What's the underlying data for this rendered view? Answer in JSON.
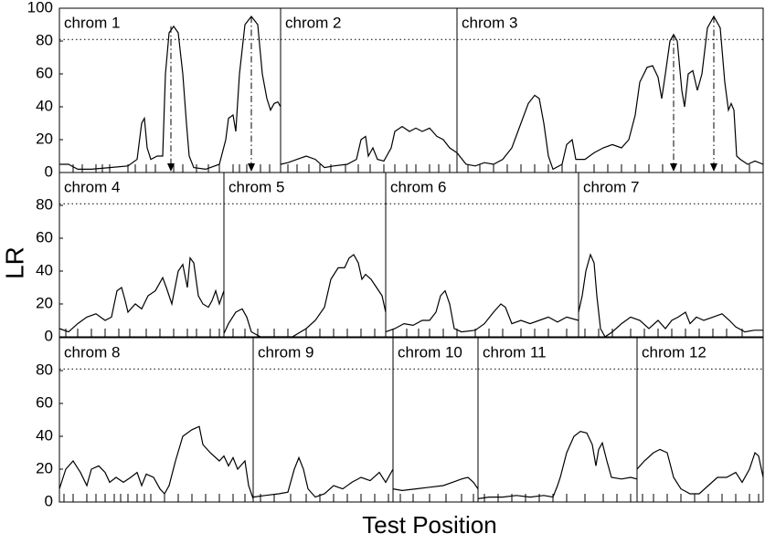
{
  "figure": {
    "ylabel": "LR",
    "xlabel": "Test Position"
  },
  "chart_data": [
    {
      "type": "line",
      "xlim": [
        65,
        835
      ],
      "ylim": [
        0,
        100
      ],
      "yticks": [
        0,
        20,
        40,
        60,
        80,
        100
      ],
      "threshold": 81,
      "color": "#000000",
      "chromosomes": [
        {
          "name": "chrom 1",
          "range": [
            65,
            307
          ],
          "x": [
            65,
            75,
            85,
            100,
            120,
            140,
            150,
            155,
            158,
            161,
            165,
            172,
            178,
            181,
            185,
            190,
            195,
            200,
            204,
            207,
            212,
            225,
            240,
            247,
            250,
            255,
            258,
            262,
            268,
            275,
            282,
            287,
            292,
            296,
            300,
            304,
            307
          ],
          "values": [
            5,
            5,
            2,
            2,
            3,
            4,
            8,
            30,
            33,
            15,
            8,
            10,
            10,
            60,
            85,
            89,
            85,
            60,
            30,
            10,
            3,
            2,
            5,
            20,
            33,
            35,
            25,
            60,
            90,
            95,
            90,
            60,
            45,
            38,
            42,
            43,
            40
          ],
          "markers": [
            80,
            90,
            105,
            112,
            120,
            140,
            148,
            160,
            170,
            190,
            200,
            215,
            228,
            240,
            255,
            262,
            270,
            285,
            295
          ],
          "peaks": [
            {
              "x": 187,
              "value": 89
            },
            {
              "x": 275,
              "value": 95
            }
          ]
        },
        {
          "name": "chrom 2",
          "range": [
            307,
            500
          ],
          "x": [
            307,
            315,
            325,
            335,
            345,
            355,
            365,
            380,
            390,
            395,
            400,
            403,
            408,
            413,
            420,
            428,
            432,
            440,
            448,
            455,
            462,
            470,
            478,
            485,
            492,
            500
          ],
          "values": [
            5,
            6,
            8,
            10,
            8,
            3,
            4,
            5,
            8,
            20,
            22,
            10,
            15,
            8,
            7,
            15,
            25,
            28,
            25,
            27,
            25,
            27,
            22,
            20,
            15,
            12
          ],
          "markers": [
            315,
            325,
            338,
            350,
            362,
            378,
            392,
            405,
            420,
            432,
            445,
            455,
            470,
            480,
            492
          ]
        },
        {
          "name": "chrom 3",
          "range": [
            500,
            835
          ],
          "x": [
            500,
            510,
            520,
            530,
            540,
            550,
            560,
            570,
            578,
            585,
            590,
            595,
            600,
            605,
            615,
            620,
            626,
            630,
            640,
            650,
            660,
            670,
            680,
            688,
            695,
            700,
            708,
            714,
            720,
            724,
            728,
            733,
            737,
            741,
            746,
            749,
            753,
            758,
            763,
            768,
            774,
            781,
            788,
            793,
            797,
            800,
            803,
            806,
            810,
            818,
            826,
            835
          ],
          "values": [
            12,
            5,
            4,
            6,
            5,
            8,
            15,
            30,
            42,
            47,
            45,
            30,
            10,
            2,
            5,
            17,
            20,
            8,
            8,
            12,
            15,
            17,
            15,
            20,
            35,
            55,
            64,
            65,
            58,
            45,
            60,
            80,
            84,
            80,
            50,
            40,
            60,
            62,
            50,
            60,
            88,
            95,
            88,
            55,
            38,
            42,
            38,
            10,
            8,
            5,
            7,
            5
          ],
          "markers": [
            512,
            525,
            540,
            555,
            570,
            585,
            600,
            615,
            630,
            650,
            665,
            680,
            695,
            710,
            725,
            745,
            760,
            770,
            790,
            805,
            820
          ],
          "peaks": [
            {
              "x": 737,
              "value": 84
            },
            {
              "x": 781,
              "value": 95
            }
          ]
        }
      ]
    },
    {
      "type": "line",
      "xlim": [
        65,
        835
      ],
      "ylim": [
        0,
        100
      ],
      "yticks": [
        0,
        20,
        40,
        60,
        80
      ],
      "threshold": 81,
      "color": "#000000",
      "chromosomes": [
        {
          "name": "chrom 4",
          "range": [
            65,
            245
          ],
          "x": [
            65,
            75,
            85,
            95,
            105,
            115,
            122,
            128,
            133,
            137,
            140,
            148,
            155,
            162,
            170,
            178,
            182,
            188,
            195,
            200,
            205,
            208,
            212,
            217,
            222,
            228,
            232,
            236,
            240,
            245
          ],
          "values": [
            5,
            3,
            8,
            12,
            14,
            10,
            12,
            28,
            30,
            22,
            15,
            20,
            17,
            25,
            28,
            36,
            30,
            20,
            40,
            44,
            30,
            48,
            45,
            25,
            20,
            18,
            22,
            28,
            20,
            28
          ],
          "markers": [
            72,
            85,
            100,
            115,
            130,
            142,
            160,
            175,
            190,
            205,
            215,
            230,
            240
          ]
        },
        {
          "name": "chrom 5",
          "range": [
            245,
            422
          ],
          "x": [
            245,
            250,
            258,
            265,
            270,
            275,
            285,
            300,
            320,
            335,
            345,
            355,
            362,
            370,
            377,
            382,
            387,
            392,
            396,
            400,
            406,
            412,
            418,
            422
          ],
          "values": [
            2,
            8,
            15,
            17,
            12,
            3,
            0,
            0,
            0,
            5,
            10,
            18,
            35,
            42,
            42,
            48,
            50,
            45,
            35,
            38,
            35,
            30,
            25,
            15
          ],
          "markers": [
            255,
            268,
            282,
            300,
            315,
            335,
            350,
            365,
            380,
            395,
            410
          ]
        },
        {
          "name": "chrom 6",
          "range": [
            422,
            633
          ],
          "x": [
            422,
            432,
            442,
            452,
            462,
            470,
            477,
            482,
            487,
            492,
            497,
            505,
            520,
            530,
            540,
            548,
            553,
            560,
            570,
            580,
            590,
            600,
            610,
            620,
            633
          ],
          "values": [
            3,
            5,
            8,
            7,
            10,
            10,
            15,
            25,
            28,
            20,
            5,
            3,
            4,
            8,
            15,
            20,
            18,
            8,
            10,
            8,
            10,
            12,
            9,
            12,
            10
          ],
          "markers": [
            430,
            445,
            458,
            470,
            485,
            500,
            520,
            535,
            550,
            570,
            585,
            600,
            620
          ]
        },
        {
          "name": "chrom 7",
          "range": [
            633,
            835
          ],
          "x": [
            633,
            637,
            641,
            646,
            650,
            653,
            657,
            662,
            670,
            680,
            690,
            700,
            710,
            720,
            728,
            735,
            742,
            750,
            755,
            762,
            770,
            780,
            790,
            798,
            805,
            815,
            825,
            835
          ],
          "values": [
            15,
            25,
            40,
            50,
            45,
            25,
            5,
            0,
            3,
            8,
            12,
            10,
            5,
            10,
            5,
            10,
            12,
            15,
            8,
            12,
            10,
            12,
            14,
            10,
            6,
            3,
            4,
            4
          ],
          "markers": [
            640,
            655,
            670,
            690,
            705,
            720,
            735,
            750,
            765,
            780,
            795,
            812
          ]
        }
      ]
    },
    {
      "type": "line",
      "xlim": [
        65,
        835
      ],
      "ylim": [
        0,
        100
      ],
      "yticks": [
        0,
        20,
        40,
        60,
        80
      ],
      "threshold": 81,
      "color": "#000000",
      "chromosomes": [
        {
          "name": "chrom 8",
          "range": [
            65,
            277
          ],
          "x": [
            65,
            72,
            80,
            88,
            95,
            100,
            108,
            115,
            120,
            127,
            135,
            143,
            150,
            155,
            160,
            168,
            175,
            180,
            185,
            192,
            200,
            210,
            218,
            222,
            230,
            240,
            245,
            250,
            255,
            260,
            268,
            272,
            277
          ],
          "values": [
            8,
            20,
            25,
            18,
            10,
            20,
            22,
            18,
            12,
            15,
            12,
            15,
            18,
            10,
            17,
            15,
            8,
            5,
            10,
            25,
            40,
            44,
            46,
            35,
            30,
            25,
            28,
            22,
            27,
            20,
            25,
            10,
            2
          ],
          "markers": [
            70,
            80,
            95,
            105,
            115,
            125,
            132,
            140,
            150,
            158,
            165,
            180,
            195,
            210,
            225,
            240,
            255,
            268
          ]
        },
        {
          "name": "chrom 9",
          "range": [
            277,
            430
          ],
          "x": [
            277,
            290,
            305,
            315,
            322,
            327,
            332,
            337,
            345,
            355,
            365,
            375,
            385,
            395,
            405,
            415,
            422,
            430
          ],
          "values": [
            3,
            4,
            5,
            6,
            20,
            27,
            20,
            8,
            3,
            5,
            10,
            8,
            12,
            15,
            13,
            18,
            12,
            20
          ],
          "markers": [
            285,
            300,
            318,
            335,
            350,
            365,
            380,
            395,
            410,
            425
          ]
        },
        {
          "name": "chrom 10",
          "range": [
            430,
            523
          ],
          "x": [
            430,
            440,
            455,
            470,
            485,
            495,
            505,
            512,
            518,
            523
          ],
          "values": [
            8,
            7,
            8,
            9,
            10,
            12,
            14,
            15,
            12,
            8
          ],
          "markers": [
            438,
            452,
            470,
            488,
            505,
            518
          ]
        },
        {
          "name": "chrom 11",
          "range": [
            523,
            697
          ],
          "x": [
            523,
            535,
            550,
            565,
            580,
            595,
            605,
            610,
            613,
            620,
            628,
            635,
            642,
            648,
            652,
            655,
            659,
            664,
            669,
            680,
            690,
            697
          ],
          "values": [
            2,
            3,
            3,
            4,
            3,
            4,
            3,
            10,
            15,
            30,
            40,
            43,
            42,
            35,
            22,
            32,
            36,
            25,
            15,
            14,
            15,
            14
          ],
          "markers": [
            530,
            545,
            560,
            575,
            590,
            605,
            620,
            640,
            660,
            675,
            690
          ]
        },
        {
          "name": "chrom 12",
          "range": [
            697,
            835
          ],
          "x": [
            697,
            705,
            715,
            722,
            730,
            737,
            745,
            755,
            765,
            775,
            785,
            795,
            805,
            812,
            820,
            826,
            830,
            835
          ],
          "values": [
            20,
            25,
            30,
            32,
            30,
            15,
            8,
            5,
            5,
            10,
            15,
            15,
            18,
            12,
            20,
            30,
            28,
            15
          ],
          "markers": [
            703,
            715,
            730,
            745,
            760,
            775,
            790,
            805,
            820,
            830
          ]
        }
      ]
    }
  ]
}
